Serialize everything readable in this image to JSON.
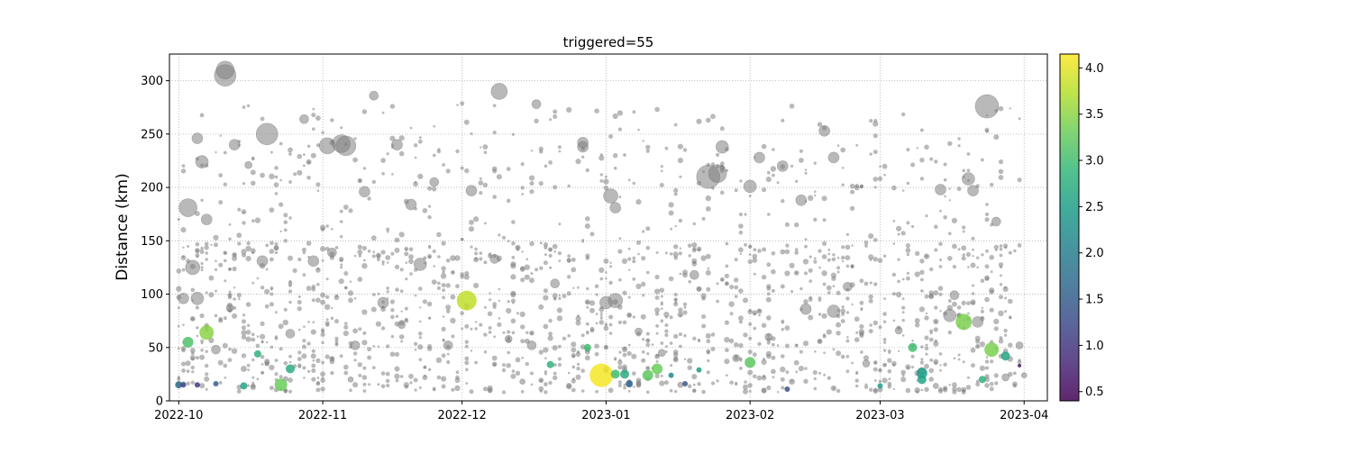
{
  "chart_data": {
    "type": "scatter",
    "title": "triggered=55",
    "xlabel": "",
    "ylabel": "Distance (km)",
    "xlim": [
      "2022-09-29",
      "2023-04-06"
    ],
    "ylim": [
      0,
      325
    ],
    "x_ticks": [
      "2022-10-01",
      "2022-11-01",
      "2022-12-01",
      "2023-01-01",
      "2023-02-01",
      "2023-03-01",
      "2023-04-01"
    ],
    "x_tick_labels": [
      "2022-10",
      "2022-11",
      "2022-12",
      "2023-01",
      "2023-02",
      "2023-03",
      "2023-04"
    ],
    "y_ticks": [
      0,
      50,
      100,
      150,
      200,
      250,
      300
    ],
    "y_tick_labels": [
      "0",
      "50",
      "100",
      "150",
      "200",
      "250",
      "300"
    ],
    "grid": true,
    "grid_style": "dotted",
    "colorbar": {
      "colormap": "viridis",
      "range": [
        0.4,
        4.15
      ],
      "ticks": [
        0.5,
        1.0,
        1.5,
        2.0,
        2.5,
        3.0,
        3.5,
        4.0
      ],
      "tick_labels": [
        "0.5",
        "1.0",
        "1.5",
        "2.0",
        "2.5",
        "3.0",
        "3.5",
        "4.0"
      ]
    },
    "untriggered_color": "#808080",
    "series": [
      {
        "name": "",
        "note": "background (untriggered) events, gray; representative sample",
        "x": [
          "2022-10-11",
          "2022-10-11",
          "2022-10-20",
          "2022-10-03",
          "2022-10-06",
          "2022-11-02",
          "2022-11-05",
          "2022-11-06",
          "2022-12-09",
          "2023-01-23",
          "2023-01-25",
          "2023-03-24",
          "2022-10-05",
          "2022-10-07",
          "2022-10-13",
          "2022-10-16",
          "2022-10-28",
          "2022-11-12",
          "2022-11-10",
          "2022-11-17",
          "2022-11-20",
          "2022-11-25",
          "2022-12-03",
          "2022-12-17",
          "2022-12-27",
          "2022-12-27",
          "2023-01-03",
          "2023-01-02",
          "2023-01-26",
          "2023-02-01",
          "2023-02-03",
          "2023-02-08",
          "2023-02-12",
          "2023-02-17",
          "2023-02-19",
          "2023-03-14",
          "2023-03-20",
          "2023-03-21",
          "2023-03-26",
          "2022-10-04",
          "2022-10-19",
          "2022-10-30",
          "2022-11-03",
          "2022-11-22",
          "2022-12-08",
          "2023-01-03",
          "2023-01-01",
          "2023-02-13",
          "2023-02-19",
          "2023-03-16",
          "2023-03-22",
          "2022-10-02",
          "2022-10-05",
          "2022-10-25",
          "2022-11-08",
          "2022-11-28",
          "2022-12-16",
          "2023-01-13",
          "2023-01-29",
          "2023-02-26",
          "2023-03-10",
          "2023-03-28",
          "2022-10-09",
          "2022-11-14",
          "2022-12-21",
          "2023-01-20",
          "2023-02-22",
          "2023-03-17",
          "2022-10-12",
          "2022-11-18",
          "2022-12-11",
          "2023-01-08",
          "2023-02-05",
          "2023-03-05",
          "2023-03-31",
          "2022-10-15",
          "2022-11-07",
          "2022-12-14",
          "2023-01-17",
          "2023-02-10",
          "2023-03-13",
          "2023-04-01"
        ],
        "y": [
          305,
          310,
          250,
          181,
          224,
          239,
          241,
          239,
          290,
          210,
          213,
          276,
          246,
          170,
          240,
          221,
          264,
          286,
          196,
          240,
          184,
          205,
          197,
          278,
          242,
          238,
          181,
          192,
          238,
          201,
          228,
          220,
          188,
          253,
          228,
          198,
          208,
          197,
          168,
          125,
          131,
          131,
          139,
          128,
          133,
          94,
          92,
          86,
          84,
          80,
          74,
          96,
          96,
          63,
          52,
          52,
          52,
          45,
          40,
          35,
          28,
          22,
          48,
          92,
          110,
          118,
          107,
          99,
          87,
          71,
          58,
          65,
          60,
          66,
          52,
          30,
          20,
          18,
          15,
          18,
          14,
          24
        ],
        "size": [
          12,
          10,
          12,
          10,
          7,
          9,
          10,
          11,
          9,
          13,
          10,
          13,
          6,
          6,
          6,
          4,
          5,
          5,
          6,
          6,
          6,
          5,
          6,
          5,
          6,
          6,
          6,
          8,
          7,
          7,
          6,
          6,
          6,
          6,
          6,
          6,
          7,
          6,
          5,
          8,
          6,
          6,
          5,
          7,
          5,
          8,
          7,
          6,
          7,
          7,
          6,
          6,
          7,
          5,
          5,
          5,
          5,
          4,
          4,
          4,
          4,
          4,
          5,
          6,
          5,
          5,
          5,
          5,
          4,
          4,
          4,
          4,
          4,
          4,
          4,
          3,
          3,
          3,
          3,
          3,
          3,
          3
        ]
      },
      {
        "name": "",
        "note": "triggered events, colored by magnitude (colorbar)",
        "x": [
          "2022-10-01",
          "2022-10-03",
          "2022-10-07",
          "2022-10-15",
          "2022-10-18",
          "2022-10-23",
          "2022-10-25",
          "2022-12-02",
          "2022-12-20",
          "2022-12-28",
          "2022-12-31",
          "2023-01-03",
          "2023-01-05",
          "2023-01-06",
          "2023-01-10",
          "2023-01-12",
          "2023-01-15",
          "2023-01-21",
          "2023-02-01",
          "2023-03-01",
          "2023-03-08",
          "2023-03-10",
          "2023-03-10",
          "2023-03-19",
          "2023-03-23",
          "2023-03-25",
          "2023-03-28",
          "2022-10-02",
          "2022-10-05",
          "2022-10-09",
          "2023-01-18",
          "2023-02-09",
          "2023-03-31"
        ],
        "y": [
          15,
          55,
          64,
          14,
          44,
          15,
          30,
          94,
          34,
          50,
          24,
          25,
          25,
          16,
          24,
          30,
          24,
          29,
          36,
          14,
          50,
          20,
          26,
          74,
          20,
          48,
          42,
          15,
          15,
          16,
          16,
          11,
          33
        ],
        "color_value": [
          1.7,
          3.1,
          3.5,
          2.6,
          2.8,
          3.3,
          2.7,
          3.8,
          2.8,
          3.0,
          4.1,
          3.0,
          2.7,
          1.6,
          3.2,
          3.3,
          2.2,
          2.6,
          3.2,
          2.5,
          3.0,
          2.6,
          2.5,
          3.4,
          2.8,
          3.4,
          2.6,
          1.2,
          1.0,
          1.5,
          1.4,
          1.3,
          0.6
        ],
        "size": [
          4,
          6,
          8,
          4,
          4,
          7,
          5,
          11,
          4,
          4,
          13,
          5,
          5,
          4,
          6,
          6,
          3,
          3,
          6,
          3,
          5,
          5,
          6,
          9,
          4,
          8,
          5,
          3,
          3,
          3,
          3,
          3,
          2
        ]
      }
    ]
  }
}
